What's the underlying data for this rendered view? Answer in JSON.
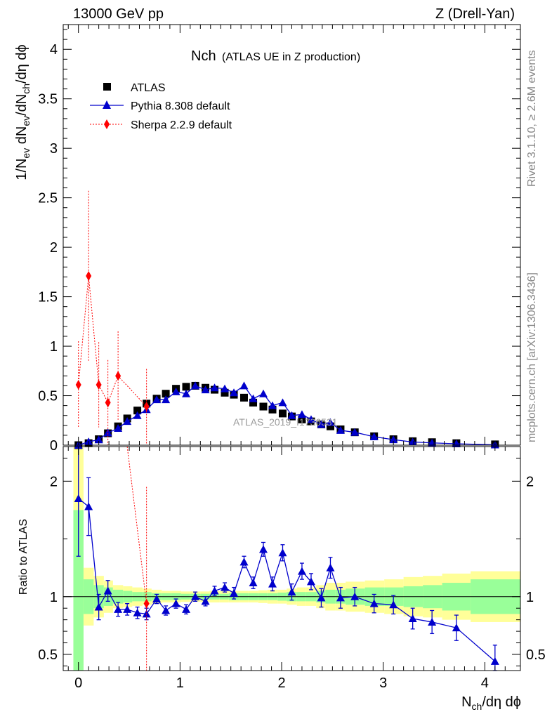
{
  "header": {
    "left": "13000 GeV pp",
    "right": "Z (Drell-Yan)"
  },
  "side_labels": {
    "rivet": "Rivet 3.1.10, ≥ 2.6M events",
    "mcplots": "mcplots.cern.ch [arXiv:1306.3436]"
  },
  "chart_data": {
    "type": "scatter",
    "title_main": "Nch",
    "title_sub": "(ATLAS UE in Z production)",
    "watermark": "ATLAS_2019_I1736531",
    "xlabel": "N_ch/dη dϕ",
    "ylabel": "1/N_ev dN_ev/dN_ch/dη dϕ",
    "ratio_ylabel": "Ratio to ATLAS",
    "xlim": [
      -0.15,
      4.35
    ],
    "ylim": [
      0,
      4.25
    ],
    "ratio_ylim": [
      0.36,
      2.3
    ],
    "x_ticks": [
      "0",
      "1",
      "2",
      "3",
      "4"
    ],
    "y_ticks": [
      "0",
      "0.5",
      "1",
      "1.5",
      "2",
      "2.5",
      "3",
      "3.5",
      "4"
    ],
    "ratio_ticks": [
      "0.5",
      "1",
      "2"
    ],
    "legend": [
      {
        "label": "ATLAS",
        "color": "#000000",
        "marker": "square"
      },
      {
        "label": "Pythia 8.308 default",
        "color": "#0000cc",
        "marker": "triangle"
      },
      {
        "label": "Sherpa 2.2.9 default",
        "color": "#ff0000",
        "marker": "diamond"
      }
    ],
    "atlas": {
      "x": [
        0.0,
        0.1,
        0.2,
        0.29,
        0.39,
        0.48,
        0.58,
        0.67,
        0.77,
        0.86,
        0.96,
        1.06,
        1.15,
        1.25,
        1.34,
        1.44,
        1.53,
        1.63,
        1.72,
        1.82,
        1.91,
        2.01,
        2.1,
        2.2,
        2.29,
        2.39,
        2.48,
        2.58,
        2.72,
        2.91,
        3.1,
        3.29,
        3.48,
        3.72,
        4.1
      ],
      "y": [
        0.0,
        0.02,
        0.06,
        0.12,
        0.19,
        0.27,
        0.35,
        0.42,
        0.47,
        0.52,
        0.57,
        0.59,
        0.6,
        0.58,
        0.56,
        0.53,
        0.51,
        0.48,
        0.43,
        0.39,
        0.36,
        0.32,
        0.29,
        0.26,
        0.24,
        0.21,
        0.19,
        0.16,
        0.13,
        0.09,
        0.06,
        0.04,
        0.03,
        0.02,
        0.008
      ]
    },
    "pythia": {
      "x": [
        0.0,
        0.1,
        0.2,
        0.29,
        0.39,
        0.48,
        0.58,
        0.67,
        0.77,
        0.86,
        0.96,
        1.06,
        1.15,
        1.25,
        1.34,
        1.44,
        1.53,
        1.63,
        1.72,
        1.82,
        1.91,
        2.01,
        2.1,
        2.2,
        2.29,
        2.39,
        2.48,
        2.58,
        2.72,
        2.91,
        3.1,
        3.29,
        3.48,
        3.72,
        4.1
      ],
      "y": [
        0.0,
        0.035,
        0.055,
        0.125,
        0.17,
        0.24,
        0.3,
        0.36,
        0.46,
        0.46,
        0.54,
        0.52,
        0.6,
        0.56,
        0.58,
        0.57,
        0.53,
        0.6,
        0.47,
        0.52,
        0.4,
        0.43,
        0.3,
        0.31,
        0.26,
        0.21,
        0.23,
        0.15,
        0.13,
        0.085,
        0.056,
        0.032,
        0.023,
        0.014,
        0.0035
      ],
      "ratio": [
        1.85,
        1.78,
        0.91,
        1.05,
        0.89,
        0.89,
        0.86,
        0.85,
        0.98,
        0.88,
        0.94,
        0.89,
        1.0,
        0.96,
        1.05,
        1.08,
        1.03,
        1.3,
        1.12,
        1.41,
        1.11,
        1.38,
        1.04,
        1.22,
        1.13,
        0.99,
        1.25,
        0.99,
        1.0,
        0.94,
        0.93,
        0.81,
        0.78,
        0.73,
        0.44
      ],
      "ratio_err": [
        0.5,
        0.25,
        0.11,
        0.09,
        0.06,
        0.05,
        0.05,
        0.05,
        0.04,
        0.04,
        0.04,
        0.04,
        0.04,
        0.04,
        0.04,
        0.04,
        0.05,
        0.05,
        0.05,
        0.06,
        0.06,
        0.07,
        0.07,
        0.07,
        0.07,
        0.08,
        0.09,
        0.09,
        0.08,
        0.08,
        0.08,
        0.09,
        0.1,
        0.11,
        0.14
      ]
    },
    "sherpa": {
      "x": [
        0.0,
        0.1,
        0.2,
        0.29,
        0.39,
        0.67
      ],
      "y": [
        0.61,
        1.71,
        0.61,
        0.43,
        0.7,
        0.39
      ],
      "yerr": [
        0.44,
        0.86,
        0.43,
        0.43,
        0.45,
        0.38
      ],
      "ratio": [
        null,
        null,
        null,
        null,
        null,
        0.94
      ],
      "ratio_off_chart": [
        true,
        true,
        true,
        true,
        true,
        false
      ]
    },
    "bands": {
      "x_edges": [
        -0.05,
        0.05,
        0.15,
        0.25,
        0.34,
        0.44,
        0.53,
        0.63,
        0.72,
        0.82,
        0.91,
        1.01,
        1.1,
        1.2,
        1.29,
        1.39,
        1.48,
        1.58,
        1.67,
        1.77,
        1.86,
        1.96,
        2.05,
        2.15,
        2.24,
        2.34,
        2.43,
        2.53,
        2.63,
        2.82,
        3.01,
        3.2,
        3.39,
        3.58,
        3.86,
        4.35
      ],
      "inner": [
        0.75,
        0.15,
        0.1,
        0.08,
        0.06,
        0.05,
        0.04,
        0.04,
        0.03,
        0.03,
        0.03,
        0.025,
        0.025,
        0.025,
        0.025,
        0.025,
        0.03,
        0.03,
        0.03,
        0.03,
        0.03,
        0.035,
        0.04,
        0.04,
        0.04,
        0.05,
        0.06,
        0.06,
        0.07,
        0.08,
        0.08,
        0.09,
        0.1,
        0.12,
        0.15
      ],
      "outer": [
        1.5,
        0.25,
        0.18,
        0.14,
        0.1,
        0.09,
        0.08,
        0.07,
        0.06,
        0.05,
        0.05,
        0.045,
        0.045,
        0.045,
        0.05,
        0.05,
        0.05,
        0.05,
        0.05,
        0.055,
        0.06,
        0.06,
        0.07,
        0.08,
        0.08,
        0.1,
        0.12,
        0.12,
        0.13,
        0.14,
        0.15,
        0.17,
        0.18,
        0.2,
        0.22
      ],
      "inner_color": "#99ff99",
      "outer_color": "#ffff99"
    }
  }
}
